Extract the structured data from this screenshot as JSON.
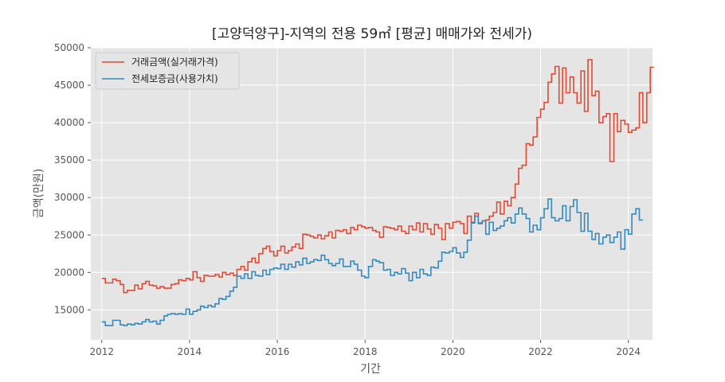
{
  "chart_data": {
    "type": "line",
    "drawstyle": "steps-post",
    "title": "[고양덕양구]-지역의 전용 59㎡ [평균] 매매가와 전세가)",
    "xlabel": "기간",
    "ylabel": "금액(만원)",
    "xlim": [
      2011.75,
      2024.55
    ],
    "ylim": [
      11000,
      50000
    ],
    "xticks": [
      2012,
      2014,
      2016,
      2018,
      2020,
      2022,
      2024
    ],
    "xtick_labels": [
      "2012",
      "2014",
      "2016",
      "2018",
      "2020",
      "2022",
      "2024"
    ],
    "yticks": [
      15000,
      20000,
      25000,
      30000,
      35000,
      40000,
      45000,
      50000
    ],
    "ytick_labels": [
      "15000",
      "20000",
      "25000",
      "30000",
      "35000",
      "40000",
      "45000",
      "50000"
    ],
    "grid": true,
    "legend_position": "top-left",
    "background": "#e5e5e5",
    "series": [
      {
        "name": "거래금액(실거래가격)",
        "color": "#e24a33",
        "points": [
          [
            2012.0,
            19200
          ],
          [
            2012.08,
            18600
          ],
          [
            2012.25,
            19100
          ],
          [
            2012.33,
            18900
          ],
          [
            2012.42,
            18400
          ],
          [
            2012.5,
            17300
          ],
          [
            2012.58,
            17600
          ],
          [
            2012.75,
            18300
          ],
          [
            2012.83,
            17800
          ],
          [
            2012.92,
            18500
          ],
          [
            2013.0,
            18800
          ],
          [
            2013.08,
            18300
          ],
          [
            2013.17,
            18200
          ],
          [
            2013.25,
            17900
          ],
          [
            2013.33,
            18100
          ],
          [
            2013.42,
            17900
          ],
          [
            2013.58,
            18400
          ],
          [
            2013.67,
            18500
          ],
          [
            2013.75,
            19000
          ],
          [
            2013.83,
            18900
          ],
          [
            2013.92,
            19200
          ],
          [
            2014.0,
            19000
          ],
          [
            2014.08,
            20100
          ],
          [
            2014.17,
            19300
          ],
          [
            2014.25,
            18800
          ],
          [
            2014.33,
            19600
          ],
          [
            2014.42,
            19500
          ],
          [
            2014.58,
            19700
          ],
          [
            2014.67,
            19400
          ],
          [
            2014.75,
            20000
          ],
          [
            2014.83,
            19700
          ],
          [
            2014.92,
            19900
          ],
          [
            2015.0,
            19600
          ],
          [
            2015.08,
            20400
          ],
          [
            2015.17,
            20800
          ],
          [
            2015.25,
            20300
          ],
          [
            2015.33,
            21400
          ],
          [
            2015.42,
            21900
          ],
          [
            2015.5,
            21300
          ],
          [
            2015.58,
            22500
          ],
          [
            2015.67,
            23200
          ],
          [
            2015.75,
            23500
          ],
          [
            2015.83,
            22800
          ],
          [
            2015.92,
            22200
          ],
          [
            2016.0,
            22900
          ],
          [
            2016.08,
            23500
          ],
          [
            2016.17,
            22600
          ],
          [
            2016.25,
            22900
          ],
          [
            2016.33,
            23400
          ],
          [
            2016.42,
            23800
          ],
          [
            2016.5,
            23200
          ],
          [
            2016.58,
            25100
          ],
          [
            2016.67,
            25000
          ],
          [
            2016.75,
            24800
          ],
          [
            2016.83,
            24600
          ],
          [
            2016.92,
            25000
          ],
          [
            2017.0,
            24500
          ],
          [
            2017.08,
            24900
          ],
          [
            2017.17,
            25400
          ],
          [
            2017.25,
            24600
          ],
          [
            2017.33,
            25600
          ],
          [
            2017.42,
            25500
          ],
          [
            2017.5,
            25700
          ],
          [
            2017.58,
            25200
          ],
          [
            2017.67,
            26000
          ],
          [
            2017.75,
            25700
          ],
          [
            2017.83,
            26300
          ],
          [
            2017.92,
            26100
          ],
          [
            2018.0,
            25900
          ],
          [
            2018.08,
            26000
          ],
          [
            2018.17,
            25600
          ],
          [
            2018.25,
            25400
          ],
          [
            2018.33,
            24700
          ],
          [
            2018.42,
            26100
          ],
          [
            2018.5,
            26000
          ],
          [
            2018.58,
            25900
          ],
          [
            2018.67,
            25700
          ],
          [
            2018.75,
            26200
          ],
          [
            2018.83,
            25500
          ],
          [
            2018.92,
            25200
          ],
          [
            2019.0,
            26200
          ],
          [
            2019.08,
            25700
          ],
          [
            2019.17,
            26600
          ],
          [
            2019.25,
            25400
          ],
          [
            2019.33,
            26500
          ],
          [
            2019.42,
            25800
          ],
          [
            2019.5,
            25100
          ],
          [
            2019.58,
            26400
          ],
          [
            2019.67,
            25900
          ],
          [
            2019.75,
            24400
          ],
          [
            2019.83,
            26500
          ],
          [
            2019.92,
            25900
          ],
          [
            2020.0,
            26700
          ],
          [
            2020.08,
            26800
          ],
          [
            2020.17,
            26500
          ],
          [
            2020.25,
            25200
          ],
          [
            2020.33,
            27500
          ],
          [
            2020.42,
            26700
          ],
          [
            2020.5,
            27900
          ],
          [
            2020.58,
            26600
          ],
          [
            2020.67,
            26900
          ],
          [
            2020.75,
            27000
          ],
          [
            2020.83,
            27500
          ],
          [
            2020.92,
            28000
          ],
          [
            2021.0,
            29400
          ],
          [
            2021.08,
            27800
          ],
          [
            2021.17,
            29500
          ],
          [
            2021.25,
            28900
          ],
          [
            2021.33,
            30000
          ],
          [
            2021.42,
            31800
          ],
          [
            2021.5,
            33900
          ],
          [
            2021.58,
            34300
          ],
          [
            2021.67,
            37200
          ],
          [
            2021.75,
            37000
          ],
          [
            2021.83,
            38100
          ],
          [
            2021.92,
            40700
          ],
          [
            2022.0,
            41800
          ],
          [
            2022.08,
            42700
          ],
          [
            2022.17,
            45400
          ],
          [
            2022.25,
            46500
          ],
          [
            2022.33,
            47500
          ],
          [
            2022.42,
            42600
          ],
          [
            2022.5,
            47300
          ],
          [
            2022.58,
            44000
          ],
          [
            2022.67,
            46100
          ],
          [
            2022.75,
            44000
          ],
          [
            2022.83,
            42600
          ],
          [
            2022.92,
            46900
          ],
          [
            2023.0,
            41500
          ],
          [
            2023.08,
            48400
          ],
          [
            2023.17,
            43600
          ],
          [
            2023.25,
            44200
          ],
          [
            2023.33,
            40000
          ],
          [
            2023.42,
            40800
          ],
          [
            2023.5,
            41200
          ],
          [
            2023.58,
            34800
          ],
          [
            2023.67,
            41200
          ],
          [
            2023.75,
            38800
          ],
          [
            2023.83,
            40300
          ],
          [
            2023.92,
            39800
          ],
          [
            2024.0,
            38700
          ],
          [
            2024.08,
            39000
          ],
          [
            2024.17,
            39300
          ],
          [
            2024.25,
            44000
          ],
          [
            2024.33,
            40000
          ],
          [
            2024.42,
            44000
          ],
          [
            2024.5,
            47400
          ],
          [
            2024.58,
            47400
          ]
        ]
      },
      {
        "name": "전세보증금(사용가치)",
        "color": "#348abd",
        "points": [
          [
            2012.0,
            13400
          ],
          [
            2012.08,
            12900
          ],
          [
            2012.25,
            13600
          ],
          [
            2012.42,
            13000
          ],
          [
            2012.5,
            12900
          ],
          [
            2012.58,
            13100
          ],
          [
            2012.67,
            13000
          ],
          [
            2012.75,
            13200
          ],
          [
            2012.83,
            13100
          ],
          [
            2012.92,
            13400
          ],
          [
            2013.0,
            13700
          ],
          [
            2013.08,
            13400
          ],
          [
            2013.17,
            13500
          ],
          [
            2013.25,
            13100
          ],
          [
            2013.33,
            13600
          ],
          [
            2013.42,
            14200
          ],
          [
            2013.5,
            14400
          ],
          [
            2013.58,
            14500
          ],
          [
            2013.67,
            14400
          ],
          [
            2013.75,
            14500
          ],
          [
            2013.83,
            14400
          ],
          [
            2013.92,
            15100
          ],
          [
            2014.0,
            14400
          ],
          [
            2014.08,
            14800
          ],
          [
            2014.17,
            15000
          ],
          [
            2014.25,
            15500
          ],
          [
            2014.33,
            15300
          ],
          [
            2014.42,
            15600
          ],
          [
            2014.5,
            15400
          ],
          [
            2014.58,
            15800
          ],
          [
            2014.67,
            16500
          ],
          [
            2014.75,
            16400
          ],
          [
            2014.83,
            16800
          ],
          [
            2014.92,
            17500
          ],
          [
            2015.0,
            18000
          ],
          [
            2015.08,
            19500
          ],
          [
            2015.17,
            19200
          ],
          [
            2015.25,
            19800
          ],
          [
            2015.33,
            19200
          ],
          [
            2015.42,
            20100
          ],
          [
            2015.5,
            19600
          ],
          [
            2015.58,
            19500
          ],
          [
            2015.67,
            20300
          ],
          [
            2015.75,
            19700
          ],
          [
            2015.83,
            20400
          ],
          [
            2015.92,
            20600
          ],
          [
            2016.0,
            20500
          ],
          [
            2016.08,
            21100
          ],
          [
            2016.17,
            20400
          ],
          [
            2016.25,
            21100
          ],
          [
            2016.33,
            20700
          ],
          [
            2016.42,
            21400
          ],
          [
            2016.5,
            21000
          ],
          [
            2016.58,
            21900
          ],
          [
            2016.67,
            21200
          ],
          [
            2016.75,
            21400
          ],
          [
            2016.83,
            21700
          ],
          [
            2016.92,
            21600
          ],
          [
            2017.0,
            22300
          ],
          [
            2017.08,
            21700
          ],
          [
            2017.17,
            21200
          ],
          [
            2017.25,
            20900
          ],
          [
            2017.33,
            21200
          ],
          [
            2017.42,
            21800
          ],
          [
            2017.5,
            20800
          ],
          [
            2017.58,
            20800
          ],
          [
            2017.67,
            21500
          ],
          [
            2017.75,
            21100
          ],
          [
            2017.83,
            20300
          ],
          [
            2017.92,
            19500
          ],
          [
            2018.0,
            19300
          ],
          [
            2018.08,
            20800
          ],
          [
            2018.17,
            21700
          ],
          [
            2018.25,
            21500
          ],
          [
            2018.33,
            21300
          ],
          [
            2018.42,
            20300
          ],
          [
            2018.5,
            20400
          ],
          [
            2018.58,
            19600
          ],
          [
            2018.67,
            20000
          ],
          [
            2018.75,
            19800
          ],
          [
            2018.83,
            20500
          ],
          [
            2018.92,
            19900
          ],
          [
            2019.0,
            18900
          ],
          [
            2019.08,
            20000
          ],
          [
            2019.17,
            19300
          ],
          [
            2019.25,
            20400
          ],
          [
            2019.33,
            19800
          ],
          [
            2019.42,
            19600
          ],
          [
            2019.5,
            20700
          ],
          [
            2019.58,
            20600
          ],
          [
            2019.67,
            21500
          ],
          [
            2019.75,
            22700
          ],
          [
            2019.83,
            22600
          ],
          [
            2019.92,
            22800
          ],
          [
            2020.0,
            23300
          ],
          [
            2020.08,
            22600
          ],
          [
            2020.17,
            22000
          ],
          [
            2020.25,
            22700
          ],
          [
            2020.33,
            24300
          ],
          [
            2020.42,
            26600
          ],
          [
            2020.5,
            27500
          ],
          [
            2020.58,
            26500
          ],
          [
            2020.67,
            26900
          ],
          [
            2020.75,
            25100
          ],
          [
            2020.83,
            26700
          ],
          [
            2020.92,
            25600
          ],
          [
            2021.0,
            25900
          ],
          [
            2021.08,
            26200
          ],
          [
            2021.17,
            26900
          ],
          [
            2021.25,
            27300
          ],
          [
            2021.33,
            26600
          ],
          [
            2021.42,
            27800
          ],
          [
            2021.5,
            28600
          ],
          [
            2021.58,
            27800
          ],
          [
            2021.67,
            27200
          ],
          [
            2021.75,
            25400
          ],
          [
            2021.83,
            26300
          ],
          [
            2021.92,
            25700
          ],
          [
            2022.0,
            27300
          ],
          [
            2022.08,
            28500
          ],
          [
            2022.17,
            29800
          ],
          [
            2022.25,
            27300
          ],
          [
            2022.33,
            26900
          ],
          [
            2022.42,
            27200
          ],
          [
            2022.5,
            28900
          ],
          [
            2022.58,
            26900
          ],
          [
            2022.67,
            28800
          ],
          [
            2022.75,
            29700
          ],
          [
            2022.83,
            28000
          ],
          [
            2022.92,
            25500
          ],
          [
            2023.0,
            27900
          ],
          [
            2023.08,
            25500
          ],
          [
            2023.17,
            24400
          ],
          [
            2023.25,
            25200
          ],
          [
            2023.33,
            23800
          ],
          [
            2023.42,
            24700
          ],
          [
            2023.5,
            25000
          ],
          [
            2023.58,
            24000
          ],
          [
            2023.67,
            24700
          ],
          [
            2023.75,
            25400
          ],
          [
            2023.83,
            23100
          ],
          [
            2023.92,
            25700
          ],
          [
            2024.0,
            25100
          ],
          [
            2024.08,
            27800
          ],
          [
            2024.17,
            28500
          ],
          [
            2024.25,
            27000
          ],
          [
            2024.33,
            27000
          ]
        ]
      }
    ]
  }
}
